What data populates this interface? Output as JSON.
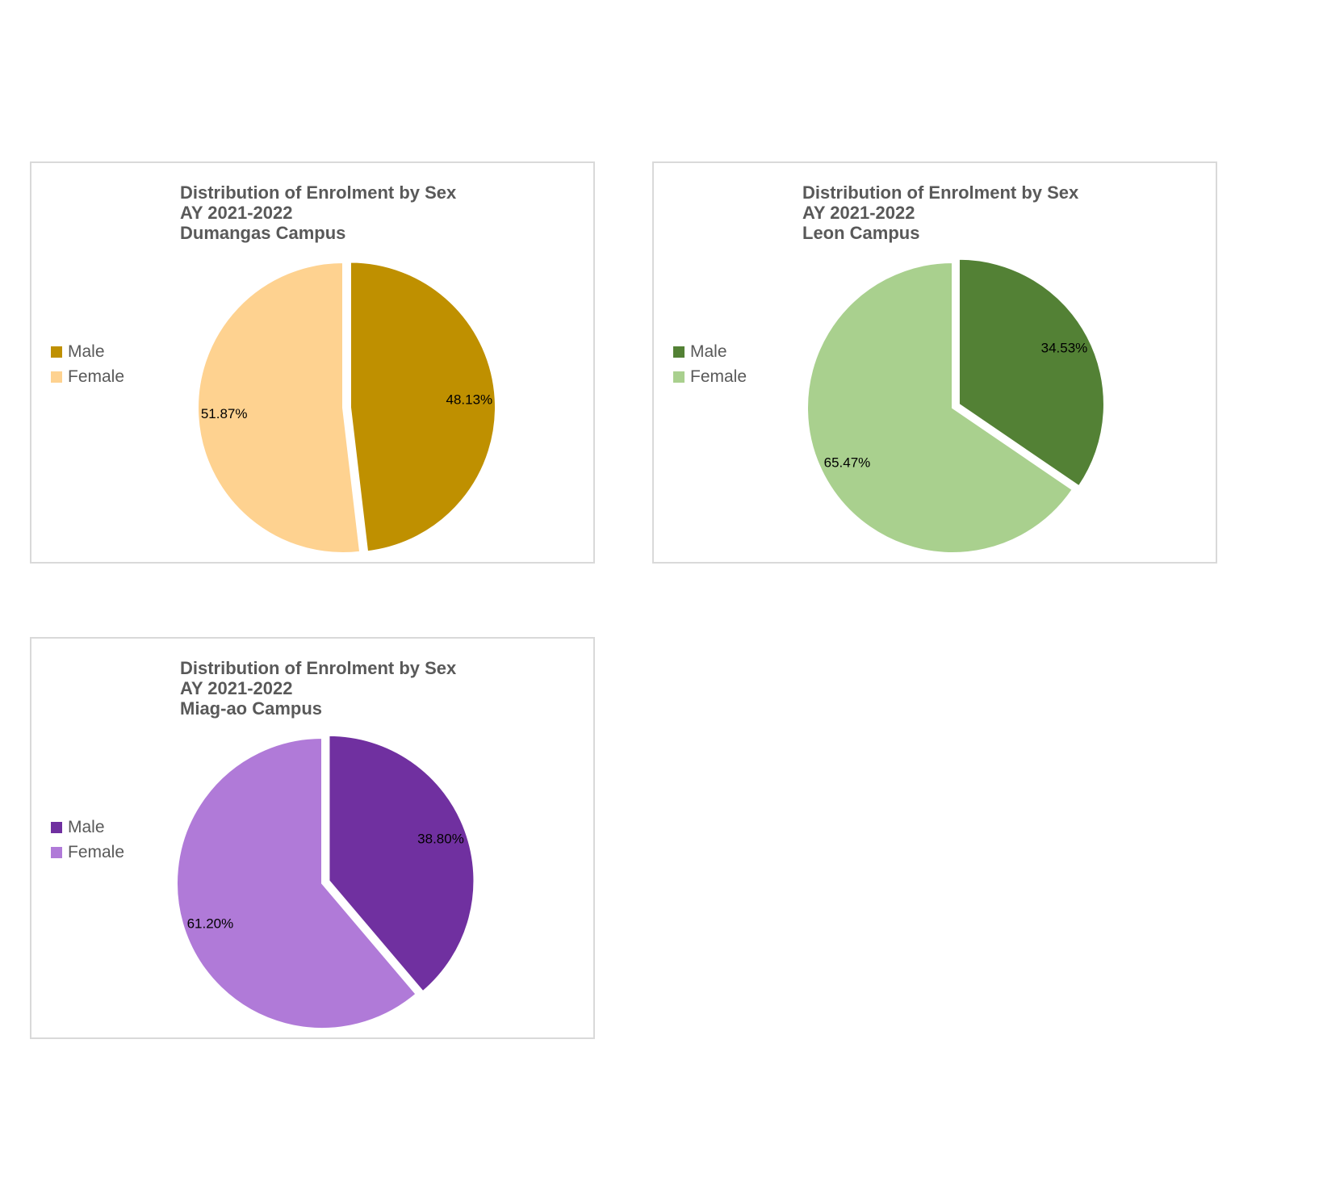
{
  "chart_data": [
    {
      "type": "pie",
      "title": [
        "Distribution of Enrolment by Sex",
        "AY 2021-2022",
        "Dumangas Campus"
      ],
      "categories": [
        "Male",
        "Female"
      ],
      "values": [
        48.13,
        51.87
      ],
      "data_labels": [
        "48.13%",
        "51.87%"
      ],
      "colors": [
        "#bf9000",
        "#fed290"
      ],
      "legend_position": "left",
      "exploded_slice": "Male"
    },
    {
      "type": "pie",
      "title": [
        "Distribution of Enrolment by Sex",
        "AY 2021-2022",
        "Leon Campus"
      ],
      "categories": [
        "Male",
        "Female"
      ],
      "values": [
        34.53,
        65.47
      ],
      "data_labels": [
        "34.53%",
        "65.47%"
      ],
      "colors": [
        "#538135",
        "#a9d08e"
      ],
      "legend_position": "left",
      "exploded_slice": "Male"
    },
    {
      "type": "pie",
      "title": [
        "Distribution of Enrolment by Sex",
        "AY 2021-2022",
        "Miag-ao Campus"
      ],
      "categories": [
        "Male",
        "Female"
      ],
      "values": [
        38.8,
        61.2
      ],
      "data_labels": [
        "38.80%",
        "61.20%"
      ],
      "colors": [
        "#7030a0",
        "#b07ad8"
      ],
      "legend_position": "left",
      "exploded_slice": "Male"
    }
  ]
}
